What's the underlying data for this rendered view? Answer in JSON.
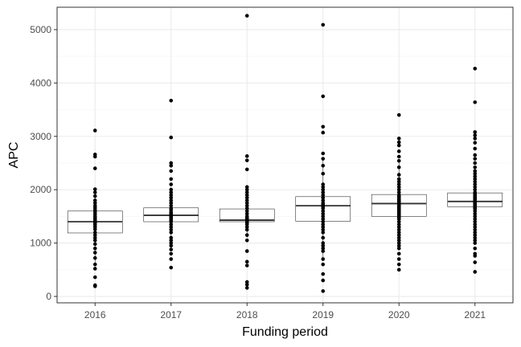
{
  "chart_data": {
    "type": "boxplot",
    "title": "",
    "xlabel": "Funding period",
    "ylabel": "APC",
    "categories": [
      "2016",
      "2017",
      "2018",
      "2019",
      "2020",
      "2021"
    ],
    "ylim": [
      -120,
      5420
    ],
    "yticks": [
      0,
      1000,
      2000,
      3000,
      4000,
      5000
    ],
    "grid": true,
    "boxes": [
      {
        "category": "2016",
        "q1": 1190,
        "median": 1400,
        "q3": 1600,
        "whisker_low": 600,
        "whisker_high": 2000
      },
      {
        "category": "2017",
        "q1": 1400,
        "median": 1520,
        "q3": 1660,
        "whisker_low": 1000,
        "whisker_high": 2050
      },
      {
        "category": "2018",
        "q1": 1400,
        "median": 1430,
        "q3": 1640,
        "whisker_low": 1100,
        "whisker_high": 1950
      },
      {
        "category": "2019",
        "q1": 1410,
        "median": 1700,
        "q3": 1870,
        "whisker_low": 700,
        "whisker_high": 2600
      },
      {
        "category": "2020",
        "q1": 1500,
        "median": 1740,
        "q3": 1910,
        "whisker_low": 900,
        "whisker_high": 2500
      },
      {
        "category": "2021",
        "q1": 1680,
        "median": 1780,
        "q3": 1940,
        "whisker_low": 1300,
        "whisker_high": 2300
      }
    ],
    "points": [
      {
        "category": "2016",
        "values": [
          3110,
          2660,
          2620,
          2400,
          2010,
          1950,
          1880,
          1800,
          1750,
          1700,
          1660,
          1620,
          1580,
          1540,
          1500,
          1470,
          1440,
          1410,
          1390,
          1370,
          1340,
          1300,
          1260,
          1200,
          1150,
          1100,
          1050,
          980,
          900,
          820,
          720,
          600,
          520,
          360,
          210,
          190
        ]
      },
      {
        "category": "2017",
        "values": [
          3670,
          2980,
          2500,
          2450,
          2350,
          2200,
          2100,
          2000,
          1950,
          1900,
          1850,
          1800,
          1750,
          1700,
          1650,
          1620,
          1580,
          1550,
          1520,
          1500,
          1480,
          1450,
          1420,
          1400,
          1350,
          1300,
          1250,
          1200,
          1100,
          1050,
          1000,
          950,
          880,
          800,
          700,
          540
        ]
      },
      {
        "category": "2018",
        "values": [
          5260,
          2630,
          2550,
          2380,
          2050,
          2000,
          1950,
          1900,
          1850,
          1800,
          1750,
          1700,
          1650,
          1600,
          1550,
          1500,
          1470,
          1450,
          1430,
          1420,
          1410,
          1400,
          1380,
          1350,
          1300,
          1250,
          1150,
          1050,
          850,
          650,
          580,
          270,
          220,
          160
        ]
      },
      {
        "category": "2019",
        "values": [
          5090,
          3750,
          3180,
          3070,
          2680,
          2580,
          2450,
          2300,
          2100,
          2050,
          2000,
          1950,
          1900,
          1850,
          1800,
          1750,
          1720,
          1700,
          1680,
          1650,
          1600,
          1550,
          1500,
          1450,
          1400,
          1350,
          1300,
          1250,
          1200,
          1100,
          1000,
          950,
          900,
          850,
          700,
          600,
          420,
          300,
          100
        ]
      },
      {
        "category": "2020",
        "values": [
          3400,
          2960,
          2890,
          2830,
          2720,
          2620,
          2540,
          2420,
          2280,
          2200,
          2150,
          2100,
          2050,
          2000,
          1950,
          1900,
          1870,
          1850,
          1820,
          1800,
          1780,
          1760,
          1740,
          1720,
          1700,
          1680,
          1660,
          1640,
          1620,
          1600,
          1580,
          1560,
          1540,
          1520,
          1500,
          1480,
          1450,
          1400,
          1350,
          1300,
          1250,
          1200,
          1150,
          1100,
          1050,
          1000,
          950,
          900,
          800,
          700,
          600,
          500
        ]
      },
      {
        "category": "2021",
        "values": [
          4270,
          3640,
          3080,
          3020,
          2960,
          2880,
          2770,
          2650,
          2580,
          2500,
          2420,
          2350,
          2300,
          2250,
          2200,
          2150,
          2100,
          2050,
          2000,
          1950,
          1920,
          1900,
          1880,
          1860,
          1840,
          1820,
          1800,
          1780,
          1760,
          1740,
          1720,
          1700,
          1680,
          1660,
          1640,
          1600,
          1550,
          1500,
          1450,
          1400,
          1350,
          1300,
          1250,
          1200,
          1150,
          1100,
          1050,
          1000,
          900,
          800,
          760,
          640,
          460
        ]
      }
    ],
    "colors": {
      "panel_border": "#333333",
      "grid_major": "#ebebeb",
      "grid_minor": "#f5f5f5",
      "points": "#000000",
      "box_line": "#333333",
      "box_fill": "#ffffff"
    }
  }
}
